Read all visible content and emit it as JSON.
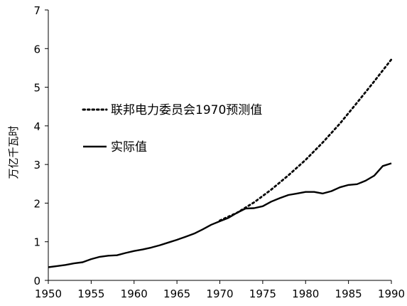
{
  "chart_data": {
    "type": "line",
    "title": "",
    "xlabel": "",
    "ylabel": "万亿千瓦时",
    "xlim": [
      1950,
      1990
    ],
    "ylim": [
      0,
      7
    ],
    "x_ticks": [
      1950,
      1955,
      1960,
      1965,
      1970,
      1975,
      1980,
      1985,
      1990
    ],
    "y_ticks": [
      0,
      1,
      2,
      3,
      4,
      5,
      6,
      7
    ],
    "grid": false,
    "legend_position": "center-left",
    "series": [
      {
        "name": "联邦电力委员会1970预测值",
        "style": "dotted",
        "color": "#000000",
        "x": [
          1970,
          1972,
          1974,
          1976,
          1978,
          1980,
          1982,
          1984,
          1986,
          1988,
          1990
        ],
        "y": [
          1.55,
          1.75,
          2.02,
          2.35,
          2.72,
          3.12,
          3.57,
          4.06,
          4.6,
          5.15,
          5.72
        ]
      },
      {
        "name": "实际值",
        "style": "solid",
        "color": "#000000",
        "x": [
          1950,
          1951,
          1952,
          1953,
          1954,
          1955,
          1956,
          1957,
          1958,
          1959,
          1960,
          1961,
          1962,
          1963,
          1964,
          1965,
          1966,
          1967,
          1968,
          1969,
          1970,
          1971,
          1972,
          1973,
          1974,
          1975,
          1976,
          1977,
          1978,
          1979,
          1980,
          1981,
          1982,
          1983,
          1984,
          1985,
          1986,
          1987,
          1988,
          1989,
          1990
        ],
        "y": [
          0.34,
          0.37,
          0.4,
          0.44,
          0.47,
          0.55,
          0.61,
          0.64,
          0.65,
          0.71,
          0.76,
          0.8,
          0.85,
          0.91,
          0.98,
          1.05,
          1.13,
          1.21,
          1.32,
          1.44,
          1.53,
          1.62,
          1.75,
          1.86,
          1.87,
          1.92,
          2.04,
          2.13,
          2.21,
          2.25,
          2.29,
          2.29,
          2.25,
          2.31,
          2.41,
          2.47,
          2.49,
          2.58,
          2.71,
          2.96,
          3.03
        ]
      }
    ]
  }
}
